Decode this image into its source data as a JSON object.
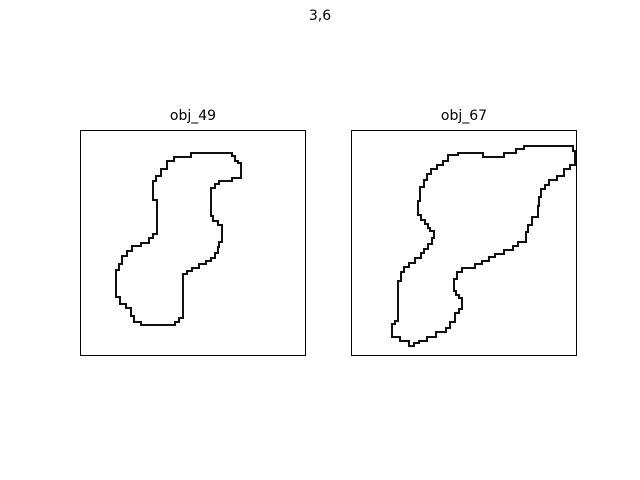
{
  "figure": {
    "title": "3,6"
  },
  "panels": [
    {
      "title": "obj_49"
    },
    {
      "title": "obj_67"
    }
  ],
  "colors": {
    "outline": "#111111",
    "frame": "#000000",
    "background": "#ffffff"
  }
}
